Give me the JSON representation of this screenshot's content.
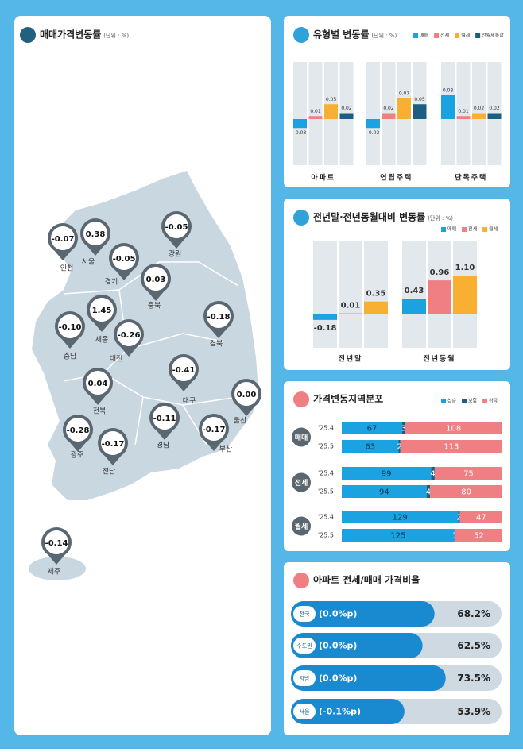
{
  "chart_data": [
    {
      "type": "map",
      "title": "매매가격변동률",
      "subtitle": "(단위 : %)",
      "categories": [
        "인천",
        "서울",
        "경기",
        "강원",
        "충북",
        "세종",
        "충남",
        "대전",
        "경북",
        "대구",
        "전북",
        "울산",
        "경남",
        "부산",
        "광주",
        "전남",
        "제주"
      ],
      "values": [
        -0.07,
        0.38,
        -0.05,
        -0.05,
        0.03,
        1.45,
        -0.1,
        -0.26,
        -0.18,
        -0.41,
        0.04,
        0.0,
        -0.11,
        -0.17,
        -0.28,
        -0.17,
        -0.14
      ],
      "value_labels": [
        "-0.07",
        "0.38",
        "-0.05",
        "-0.05",
        "0.03",
        "1.45",
        "-0.10",
        "-0.26",
        "-0.18",
        "-0.41",
        "0.04",
        "0.00",
        "-0.11",
        "-0.17",
        "-0.28",
        "-0.17",
        "-0.14"
      ]
    },
    {
      "type": "column",
      "title": "유형별 변동률",
      "subtitle": "(단위 : %)",
      "categories": [
        "아파트",
        "연립주택",
        "단독주택"
      ],
      "series": [
        {
          "name": "매매",
          "color": "#1aa3e0",
          "values": [
            -0.03,
            -0.03,
            0.08
          ]
        },
        {
          "name": "전세",
          "color": "#f07f84",
          "values": [
            0.01,
            0.02,
            0.01
          ]
        },
        {
          "name": "월세",
          "color": "#f9b032",
          "values": [
            0.05,
            0.07,
            0.02
          ]
        },
        {
          "name": "전월세통합",
          "color": "#1b5e82",
          "values": [
            0.02,
            0.05,
            0.02
          ]
        }
      ]
    },
    {
      "type": "column",
      "title": "전년말·전년동월대비 변동률",
      "subtitle": "(단위 : %)",
      "categories": [
        "전년말",
        "전년동월"
      ],
      "series": [
        {
          "name": "매매",
          "color": "#1aa3e0",
          "values": [
            -0.18,
            0.43
          ]
        },
        {
          "name": "전세",
          "color": "#f07f84",
          "values": [
            0.01,
            0.96
          ]
        },
        {
          "name": "월세",
          "color": "#f9b032",
          "values": [
            0.35,
            1.1
          ],
          "value_labels": [
            "0.35",
            "1.10"
          ]
        }
      ]
    },
    {
      "type": "stacked",
      "title": "가격변동지역분포",
      "groups": [
        "매매",
        "전세",
        "월세"
      ],
      "categories": [
        "'25.4",
        "'25.5",
        "'25.4",
        "'25.5",
        "'25.4",
        "'25.5"
      ],
      "series": [
        {
          "name": "상승",
          "color": "#1aa3e0",
          "values": [
            67,
            63,
            99,
            94,
            129,
            125
          ]
        },
        {
          "name": "보합",
          "color": "#1b5e82",
          "values": [
            3,
            2,
            4,
            4,
            2,
            1
          ]
        },
        {
          "name": "하락",
          "color": "#f07f84",
          "values": [
            108,
            113,
            75,
            80,
            47,
            52
          ]
        }
      ]
    },
    {
      "type": "progress",
      "title": "아파트 전세/매매 가격비율",
      "categories": [
        "전국",
        "수도권",
        "지방",
        "서울"
      ],
      "values": [
        68.2,
        62.5,
        73.5,
        53.9
      ],
      "value_labels": [
        "68.2%",
        "62.5%",
        "73.5%",
        "53.9%"
      ],
      "changes": [
        0.0,
        0.0,
        0.0,
        -0.1
      ],
      "change_labels": [
        "(0.0%p)",
        "(0.0%p)",
        "(0.0%p)",
        "(-0.1%p)"
      ],
      "color": "#1a8ad0"
    }
  ]
}
